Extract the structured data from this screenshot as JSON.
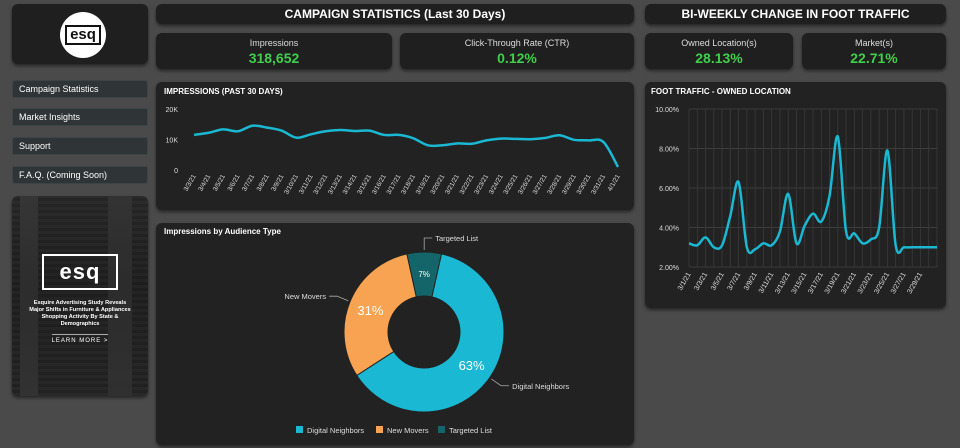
{
  "logo": {
    "text": "esq"
  },
  "sidebar": {
    "items": [
      {
        "label": "Campaign Statistics"
      },
      {
        "label": "Market Insights"
      },
      {
        "label": "Support"
      },
      {
        "label": "F.A.Q. (Coming Soon)"
      }
    ]
  },
  "promo": {
    "logo_text": "esq",
    "headline": "Esquire Advertising Study Reveals Major Shifts in Furniture & Appliances Shopping Activity By State & Demographics",
    "cta": "LEARN MORE >"
  },
  "campaign": {
    "header": "CAMPAIGN STATISTICS (Last 30 Days)",
    "impressions_label": "Impressions",
    "impressions_value": "318,652",
    "ctr_label": "Click-Through Rate (CTR)",
    "ctr_value": "0.12%"
  },
  "foot": {
    "header": "BI-WEEKLY CHANGE IN FOOT TRAFFIC",
    "owned_label": "Owned Location(s)",
    "owned_value": "28.13%",
    "market_label": "Market(s)",
    "market_value": "22.71%"
  },
  "colors": {
    "accent": "#1ab8d2",
    "kpi_green": "#3fcf4a",
    "new_movers": "#f7a351",
    "targeted": "#14656a"
  },
  "chart_data": [
    {
      "type": "line",
      "title": "IMPRESSIONS (PAST 30 DAYS)",
      "x": [
        "3/3/21",
        "3/4/21",
        "3/5/21",
        "3/6/21",
        "3/7/21",
        "3/8/21",
        "3/9/21",
        "3/10/21",
        "3/11/21",
        "3/12/21",
        "3/13/21",
        "3/14/21",
        "3/15/21",
        "3/16/21",
        "3/17/21",
        "3/18/21",
        "3/19/21",
        "3/20/21",
        "3/21/21",
        "3/22/21",
        "3/23/21",
        "3/24/21",
        "3/25/21",
        "3/26/21",
        "3/27/21",
        "3/28/21",
        "3/29/21",
        "3/30/21",
        "3/31/21",
        "4/1/21"
      ],
      "values": [
        11500,
        12200,
        13300,
        12700,
        14500,
        13900,
        12900,
        10600,
        11700,
        12700,
        13100,
        12800,
        12900,
        11500,
        11500,
        10400,
        8100,
        8100,
        8700,
        8600,
        9700,
        10300,
        10200,
        10100,
        10500,
        11400,
        9900,
        9700,
        9200,
        1000
      ],
      "yticks": [
        "0",
        "10K",
        "20K"
      ],
      "ylim": [
        0,
        20000
      ],
      "grid": false
    },
    {
      "type": "pie",
      "title": "Impressions by Audience Type",
      "slices": [
        {
          "label": "Digital Neighbors",
          "value": 63,
          "text": "63%"
        },
        {
          "label": "New Movers",
          "value": 31,
          "text": "31%"
        },
        {
          "label": "Targeted List",
          "value": 7,
          "text": "7%"
        }
      ],
      "legend": "bottom"
    },
    {
      "type": "line",
      "title": "FOOT TRAFFIC - OWNED LOCATION",
      "x": [
        "3/1/21",
        "3/2/21",
        "3/3/21",
        "3/4/21",
        "3/5/21",
        "3/6/21",
        "3/7/21",
        "3/8/21",
        "3/9/21",
        "3/10/21",
        "3/11/21",
        "3/12/21",
        "3/13/21",
        "3/14/21",
        "3/15/21",
        "3/16/21",
        "3/17/21",
        "3/18/21",
        "3/19/21",
        "3/20/21",
        "3/21/21",
        "3/22/21",
        "3/23/21",
        "3/24/21",
        "3/25/21",
        "3/26/21",
        "3/27/21",
        "3/28/21",
        "3/29/21",
        "3/30/21",
        "3/31/21"
      ],
      "xticks": [
        "3/1/21",
        "3/3/21",
        "3/5/21",
        "3/7/21",
        "3/9/21",
        "3/11/21",
        "3/13/21",
        "3/15/21",
        "3/17/21",
        "3/19/21",
        "3/21/21",
        "3/23/21",
        "3/25/21",
        "3/27/21",
        "3/29/21"
      ],
      "values": [
        3.2,
        3.1,
        3.5,
        3.0,
        3.1,
        4.6,
        6.3,
        3.0,
        2.9,
        3.2,
        3.1,
        3.8,
        5.7,
        3.2,
        4.1,
        4.7,
        4.3,
        5.6,
        8.6,
        3.8,
        3.7,
        3.2,
        3.4,
        4.0,
        7.9,
        3.1,
        3.0,
        3.0,
        3.0,
        3.0,
        3.0
      ],
      "yticks": [
        "2.00%",
        "4.00%",
        "6.00%",
        "8.00%",
        "10.00%"
      ],
      "ylim": [
        2,
        10
      ],
      "grid": true
    }
  ]
}
